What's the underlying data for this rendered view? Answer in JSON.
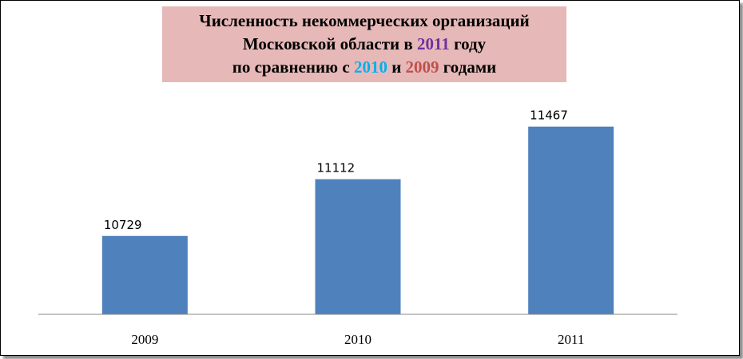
{
  "chart_data": {
    "type": "bar",
    "title": [
      [
        {
          "text": "Численность некоммерческих организаций"
        }
      ],
      [
        {
          "text": "Московской области в "
        },
        {
          "text": "2011",
          "color": "#7030a0"
        },
        {
          "text": " году"
        }
      ],
      [
        {
          "text": "по сравнению с "
        },
        {
          "text": "2010",
          "color": "#00b0f0"
        },
        {
          "text": " и "
        },
        {
          "text": "2009",
          "color": "#c0504d"
        },
        {
          "text": " годами"
        }
      ]
    ],
    "categories": [
      "2009",
      "2010",
      "2011"
    ],
    "values": [
      10729,
      11112,
      11467
    ],
    "color": "#4f81bd",
    "ylim": [
      10200,
      11600
    ]
  }
}
